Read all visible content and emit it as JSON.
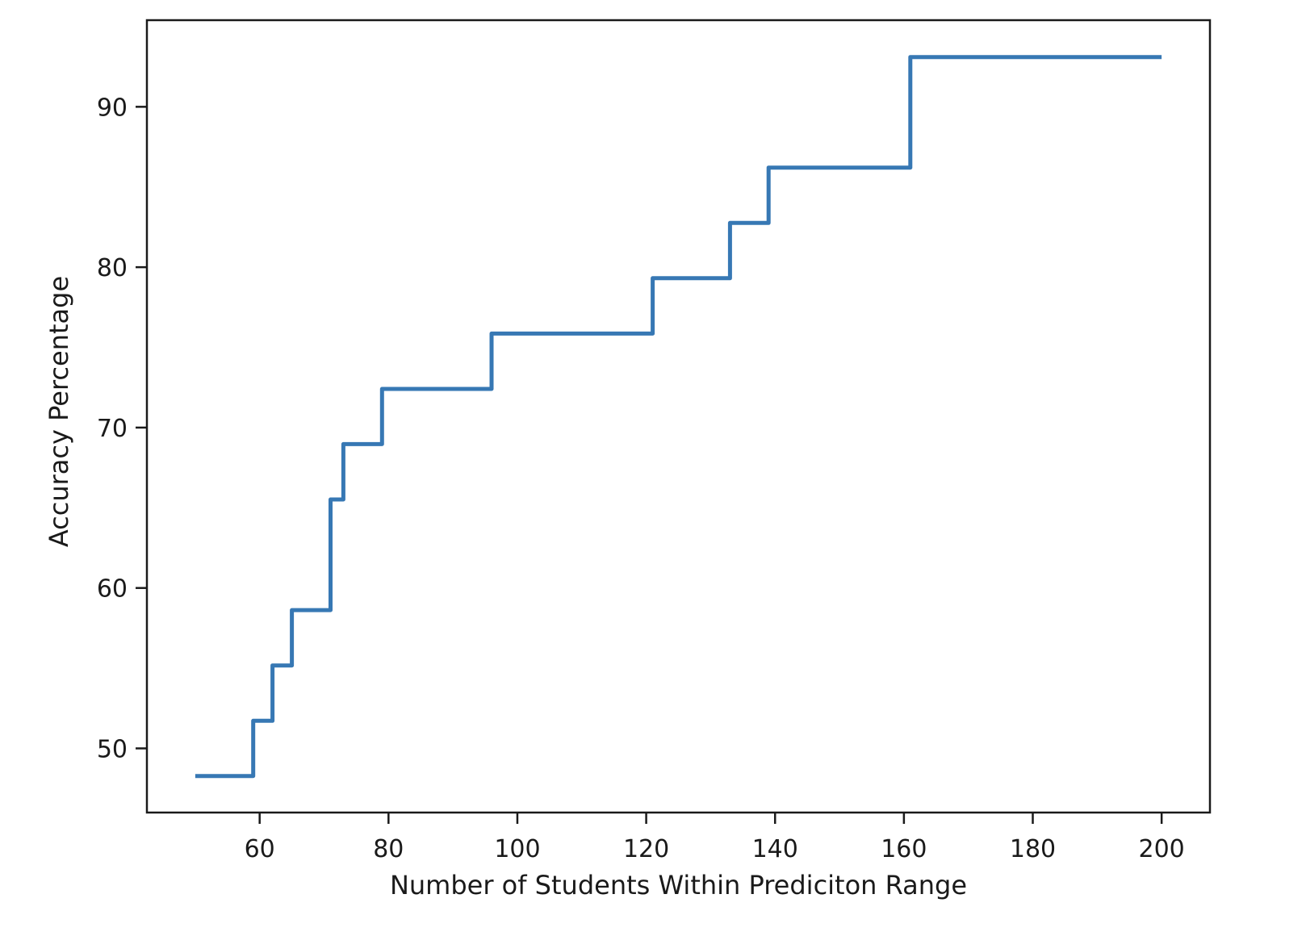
{
  "figure": {
    "background": "#ffffff",
    "text_color": "#1a1a1a",
    "spine_color": "#1a1a1a"
  },
  "chart_data": {
    "type": "line",
    "subtype": "step",
    "title": "",
    "xlabel": "Number of Students Within Prediciton Range",
    "ylabel": "Accuracy Percentage",
    "xlim": [
      42.5,
      207.5
    ],
    "ylim": [
      46.0,
      95.4
    ],
    "xticks": [
      60,
      80,
      100,
      120,
      140,
      160,
      180,
      200
    ],
    "yticks": [
      50,
      60,
      70,
      80,
      90
    ],
    "grid": false,
    "legend": null,
    "line_color": "#3778b4",
    "line_width": 5,
    "points": [
      [
        50,
        48.28
      ],
      [
        59,
        48.28
      ],
      [
        59,
        51.72
      ],
      [
        62,
        51.72
      ],
      [
        62,
        55.17
      ],
      [
        65,
        55.17
      ],
      [
        65,
        58.62
      ],
      [
        71,
        58.62
      ],
      [
        71,
        65.52
      ],
      [
        73,
        65.52
      ],
      [
        73,
        68.97
      ],
      [
        79,
        68.97
      ],
      [
        79,
        72.41
      ],
      [
        96,
        72.41
      ],
      [
        96,
        75.86
      ],
      [
        121,
        75.86
      ],
      [
        121,
        79.31
      ],
      [
        133,
        79.31
      ],
      [
        133,
        82.76
      ],
      [
        139,
        82.76
      ],
      [
        139,
        86.21
      ],
      [
        161,
        86.21
      ],
      [
        161,
        93.1
      ],
      [
        200,
        93.1
      ]
    ]
  }
}
